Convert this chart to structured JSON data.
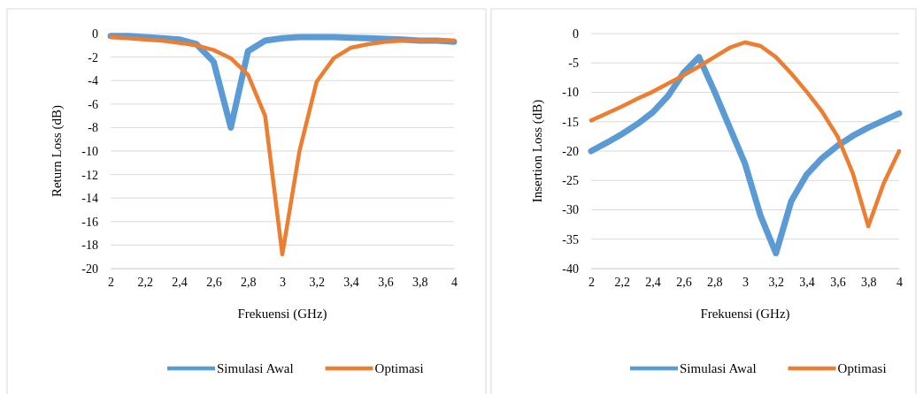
{
  "chart_data": [
    {
      "type": "line",
      "xlabel": "Frekuensi (GHz)",
      "ylabel": "Return Loss (dB)",
      "x": [
        2,
        2.1,
        2.2,
        2.3,
        2.4,
        2.5,
        2.6,
        2.7,
        2.8,
        2.9,
        3,
        3.1,
        3.2,
        3.3,
        3.4,
        3.5,
        3.6,
        3.7,
        3.8,
        3.9,
        4
      ],
      "series": [
        {
          "name": "Simulasi Awal",
          "color": "#5b9bd5",
          "values": [
            -0.2,
            -0.2,
            -0.3,
            -0.4,
            -0.5,
            -0.9,
            -2.4,
            -8,
            -1.5,
            -0.6,
            -0.4,
            -0.3,
            -0.3,
            -0.3,
            -0.35,
            -0.4,
            -0.45,
            -0.5,
            -0.6,
            -0.6,
            -0.7
          ]
        },
        {
          "name": "Optimasi",
          "color": "#ed7d31",
          "values": [
            -0.3,
            -0.4,
            -0.5,
            -0.6,
            -0.8,
            -1,
            -1.4,
            -2.1,
            -3.5,
            -7,
            -18.8,
            -10,
            -4.1,
            -2.1,
            -1.2,
            -0.9,
            -0.7,
            -0.6,
            -0.6,
            -0.6,
            -0.6
          ]
        }
      ],
      "xlim": [
        2,
        4
      ],
      "xticks": [
        2,
        {
          "value": 2.2,
          "label": "2,2"
        },
        {
          "value": 2.4,
          "label": "2,4"
        },
        {
          "value": 2.6,
          "label": "2,6"
        },
        {
          "value": 2.8,
          "label": "2,8"
        },
        3,
        {
          "value": 3.2,
          "label": "3,2"
        },
        {
          "value": 3.4,
          "label": "3,4"
        },
        {
          "value": 3.6,
          "label": "3,6"
        },
        {
          "value": 3.8,
          "label": "3,8"
        },
        4
      ],
      "ylim": [
        -20,
        0
      ],
      "yticks": [
        0,
        -2,
        -4,
        -6,
        -8,
        -10,
        -12,
        -14,
        -16,
        -18,
        -20
      ],
      "grid": "y",
      "legend": "bottom",
      "marker": "none",
      "line_style": "solid"
    },
    {
      "type": "line",
      "xlabel": "Frekuensi (GHz)",
      "ylabel": "Insertion Loss (dB)",
      "x": [
        2,
        2.1,
        2.2,
        2.3,
        2.4,
        2.5,
        2.6,
        2.7,
        2.8,
        2.9,
        3,
        3.1,
        3.2,
        3.3,
        3.4,
        3.5,
        3.6,
        3.7,
        3.8,
        3.9,
        4
      ],
      "series": [
        {
          "name": "Simulasi Awal",
          "color": "#5b9bd5",
          "values": [
            -20,
            -18.6,
            -17.1,
            -15.4,
            -13.4,
            -10.6,
            -6.7,
            -4,
            -9.8,
            -16,
            -22.2,
            -31,
            -37.4,
            -28.5,
            -24,
            -21.2,
            -19.1,
            -17.4,
            -16,
            -14.8,
            -13.6
          ]
        },
        {
          "name": "Optimasi",
          "color": "#ed7d31",
          "values": [
            -14.8,
            -13.6,
            -12.4,
            -11.1,
            -9.9,
            -8.5,
            -7.1,
            -5.6,
            -4,
            -2.4,
            -1.5,
            -2.1,
            -4,
            -6.8,
            -9.9,
            -13.3,
            -17.5,
            -23.8,
            -32.8,
            -25.5,
            -20
          ]
        }
      ],
      "xlim": [
        2,
        4
      ],
      "xticks": [
        2,
        {
          "value": 2.2,
          "label": "2,2"
        },
        {
          "value": 2.4,
          "label": "2,4"
        },
        {
          "value": 2.6,
          "label": "2,6"
        },
        {
          "value": 2.8,
          "label": "2,8"
        },
        3,
        {
          "value": 3.2,
          "label": "3,2"
        },
        {
          "value": 3.4,
          "label": "3,4"
        },
        {
          "value": 3.6,
          "label": "3,6"
        },
        {
          "value": 3.8,
          "label": "3,8"
        },
        4
      ],
      "ylim": [
        -40,
        0
      ],
      "yticks": [
        0,
        -5,
        -10,
        -15,
        -20,
        -25,
        -30,
        -35,
        -40
      ],
      "grid": "y",
      "legend": "bottom",
      "marker": "none",
      "line_style": "solid"
    }
  ]
}
